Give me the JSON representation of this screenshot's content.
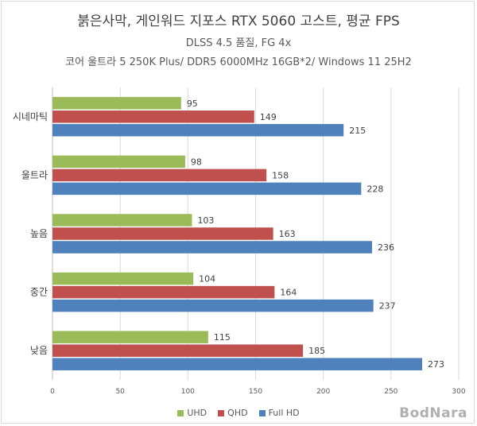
{
  "chart_data": {
    "type": "bar",
    "orientation": "horizontal",
    "title": "붉은사막, 게인워드 지포스 RTX 5060 고스트, 평균 FPS",
    "subtitle": "DLSS 4.5 품질, FG 4x",
    "subtitle2": "코어 울트라 5 250K Plus/ DDR5 6000MHz 16GB*2/ Windows 11 25H2",
    "categories": [
      "시네마틱",
      "울트라",
      "높음",
      "중간",
      "낮음"
    ],
    "series": [
      {
        "name": "UHD",
        "color": "#9bbb59",
        "values": [
          95,
          98,
          103,
          104,
          115
        ]
      },
      {
        "name": "QHD",
        "color": "#c0504d",
        "values": [
          149,
          158,
          163,
          164,
          185
        ]
      },
      {
        "name": "Full HD",
        "color": "#4f81bd",
        "values": [
          215,
          228,
          236,
          237,
          273
        ]
      }
    ],
    "xlim": [
      0,
      300
    ],
    "xticks": [
      0,
      50,
      100,
      150,
      200,
      250,
      300
    ],
    "grid": true,
    "legend": "bottom"
  },
  "watermark": "BodNara"
}
